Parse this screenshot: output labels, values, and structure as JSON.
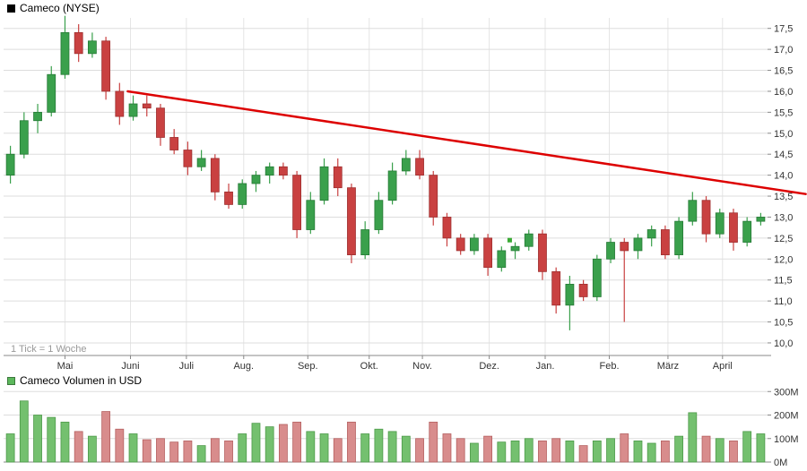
{
  "price_chart": {
    "title": "Cameco (NYSE)",
    "tick_note": "1 Tick = 1 Woche",
    "legend_color": "#000000"
  },
  "volume_chart": {
    "title": "Cameco Volumen in USD",
    "legend_color": "#5cb85c"
  },
  "chart_data": [
    {
      "type": "candlestick",
      "title": "Cameco (NYSE)",
      "tick_note": "1 Tick = 1 Woche",
      "ylim": [
        9.7,
        17.75
      ],
      "y_tick_labels": [
        "17,5",
        "17,0",
        "16,5",
        "16,0",
        "15,5",
        "15,0",
        "14,5",
        "14,0",
        "13,5",
        "13,0",
        "12,5",
        "12,0",
        "11,5",
        "11,0",
        "10,5",
        "10,0"
      ],
      "x_tick_labels": [
        "Mai",
        "Juni",
        "Juli",
        "Aug.",
        "Sep.",
        "Okt.",
        "Nov.",
        "Dez.",
        "Jan.",
        "Feb.",
        "März",
        "April"
      ],
      "month_week_positions": [
        4.0,
        8.8,
        12.9,
        17.1,
        21.8,
        26.3,
        30.2,
        35.1,
        39.2,
        43.9,
        48.2,
        52.2
      ],
      "candles": [
        [
          14.0,
          14.7,
          13.8,
          14.5
        ],
        [
          14.5,
          15.5,
          14.4,
          15.3
        ],
        [
          15.3,
          15.7,
          15.0,
          15.5
        ],
        [
          15.5,
          16.6,
          15.4,
          16.4
        ],
        [
          16.4,
          17.8,
          16.3,
          17.4
        ],
        [
          17.4,
          17.6,
          16.7,
          16.9
        ],
        [
          16.9,
          17.4,
          16.8,
          17.2
        ],
        [
          17.2,
          17.3,
          15.8,
          16.0
        ],
        [
          16.0,
          16.2,
          15.2,
          15.4
        ],
        [
          15.4,
          15.9,
          15.3,
          15.7
        ],
        [
          15.7,
          15.9,
          15.4,
          15.6
        ],
        [
          15.6,
          15.7,
          14.7,
          14.9
        ],
        [
          14.9,
          15.1,
          14.5,
          14.6
        ],
        [
          14.6,
          14.8,
          14.0,
          14.2
        ],
        [
          14.2,
          14.6,
          14.1,
          14.4
        ],
        [
          14.4,
          14.5,
          13.4,
          13.6
        ],
        [
          13.6,
          13.8,
          13.2,
          13.3
        ],
        [
          13.3,
          13.9,
          13.2,
          13.8
        ],
        [
          13.8,
          14.1,
          13.6,
          14.0
        ],
        [
          14.0,
          14.3,
          13.8,
          14.2
        ],
        [
          14.2,
          14.3,
          13.9,
          14.0
        ],
        [
          14.0,
          14.1,
          12.5,
          12.7
        ],
        [
          12.7,
          13.6,
          12.6,
          13.4
        ],
        [
          13.4,
          14.4,
          13.3,
          14.2
        ],
        [
          14.2,
          14.4,
          13.5,
          13.7
        ],
        [
          13.7,
          13.8,
          11.9,
          12.1
        ],
        [
          12.1,
          12.9,
          12.0,
          12.7
        ],
        [
          12.7,
          13.6,
          12.6,
          13.4
        ],
        [
          13.4,
          14.3,
          13.3,
          14.1
        ],
        [
          14.1,
          14.6,
          14.0,
          14.4
        ],
        [
          14.4,
          14.6,
          13.9,
          14.0
        ],
        [
          14.0,
          14.1,
          12.8,
          13.0
        ],
        [
          13.0,
          13.1,
          12.3,
          12.5
        ],
        [
          12.5,
          12.6,
          12.1,
          12.2
        ],
        [
          12.2,
          12.6,
          12.1,
          12.5
        ],
        [
          12.5,
          12.6,
          11.6,
          11.8
        ],
        [
          11.8,
          12.3,
          11.7,
          12.2
        ],
        [
          12.2,
          12.4,
          12.0,
          12.3
        ],
        [
          12.3,
          12.7,
          12.2,
          12.6
        ],
        [
          12.6,
          12.7,
          11.5,
          11.7
        ],
        [
          11.7,
          11.8,
          10.7,
          10.9
        ],
        [
          10.9,
          11.6,
          10.3,
          11.4
        ],
        [
          11.4,
          11.5,
          11.0,
          11.1
        ],
        [
          11.1,
          12.1,
          11.0,
          12.0
        ],
        [
          12.0,
          12.5,
          11.9,
          12.4
        ],
        [
          12.4,
          12.5,
          10.5,
          12.2
        ],
        [
          12.2,
          12.6,
          12.0,
          12.5
        ],
        [
          12.5,
          12.8,
          12.3,
          12.7
        ],
        [
          12.7,
          12.8,
          12.0,
          12.1
        ],
        [
          12.1,
          13.0,
          12.0,
          12.9
        ],
        [
          12.9,
          13.6,
          12.8,
          13.4
        ],
        [
          13.4,
          13.5,
          12.4,
          12.6
        ],
        [
          12.6,
          13.2,
          12.5,
          13.1
        ],
        [
          13.1,
          13.2,
          12.2,
          12.4
        ],
        [
          12.4,
          13.0,
          12.3,
          12.9
        ],
        [
          12.9,
          13.1,
          12.8,
          13.0
        ]
      ],
      "trendline": {
        "start_week": 8.6,
        "start_value": 16.0,
        "end_week": 58.3,
        "end_value": 13.55
      },
      "marker": {
        "week": 36.6,
        "value": 12.45,
        "color": "#3aaa35"
      },
      "colors": {
        "up_fill": "#3aa04c",
        "up_stroke": "#267a36",
        "down_fill": "#c94141",
        "down_stroke": "#9e2f2f",
        "trendline": "#dd0000",
        "grid": "#dddddd",
        "vgrid": "#e5e5e5",
        "axis": "#888888",
        "label": "#333333"
      }
    },
    {
      "type": "bar",
      "title": "Cameco Volumen in USD",
      "ylim": [
        0,
        320
      ],
      "y_tick_labels": [
        "300M",
        "200M",
        "100M",
        "0M"
      ],
      "values_millions": [
        120,
        260,
        200,
        190,
        170,
        130,
        110,
        215,
        140,
        120,
        95,
        100,
        85,
        90,
        70,
        100,
        90,
        120,
        165,
        150,
        160,
        170,
        130,
        120,
        100,
        170,
        120,
        140,
        130,
        110,
        100,
        170,
        120,
        100,
        80,
        110,
        85,
        90,
        100,
        90,
        100,
        90,
        70,
        90,
        100,
        120,
        90,
        80,
        90,
        110,
        210,
        110,
        100,
        90,
        130,
        120
      ],
      "colors": {
        "up_fill": "#74c06f",
        "up_stroke": "#4e9a4a",
        "down_fill": "#d88c8c",
        "down_stroke": "#b56060",
        "grid": "#dddddd",
        "axis": "#888888"
      }
    }
  ]
}
